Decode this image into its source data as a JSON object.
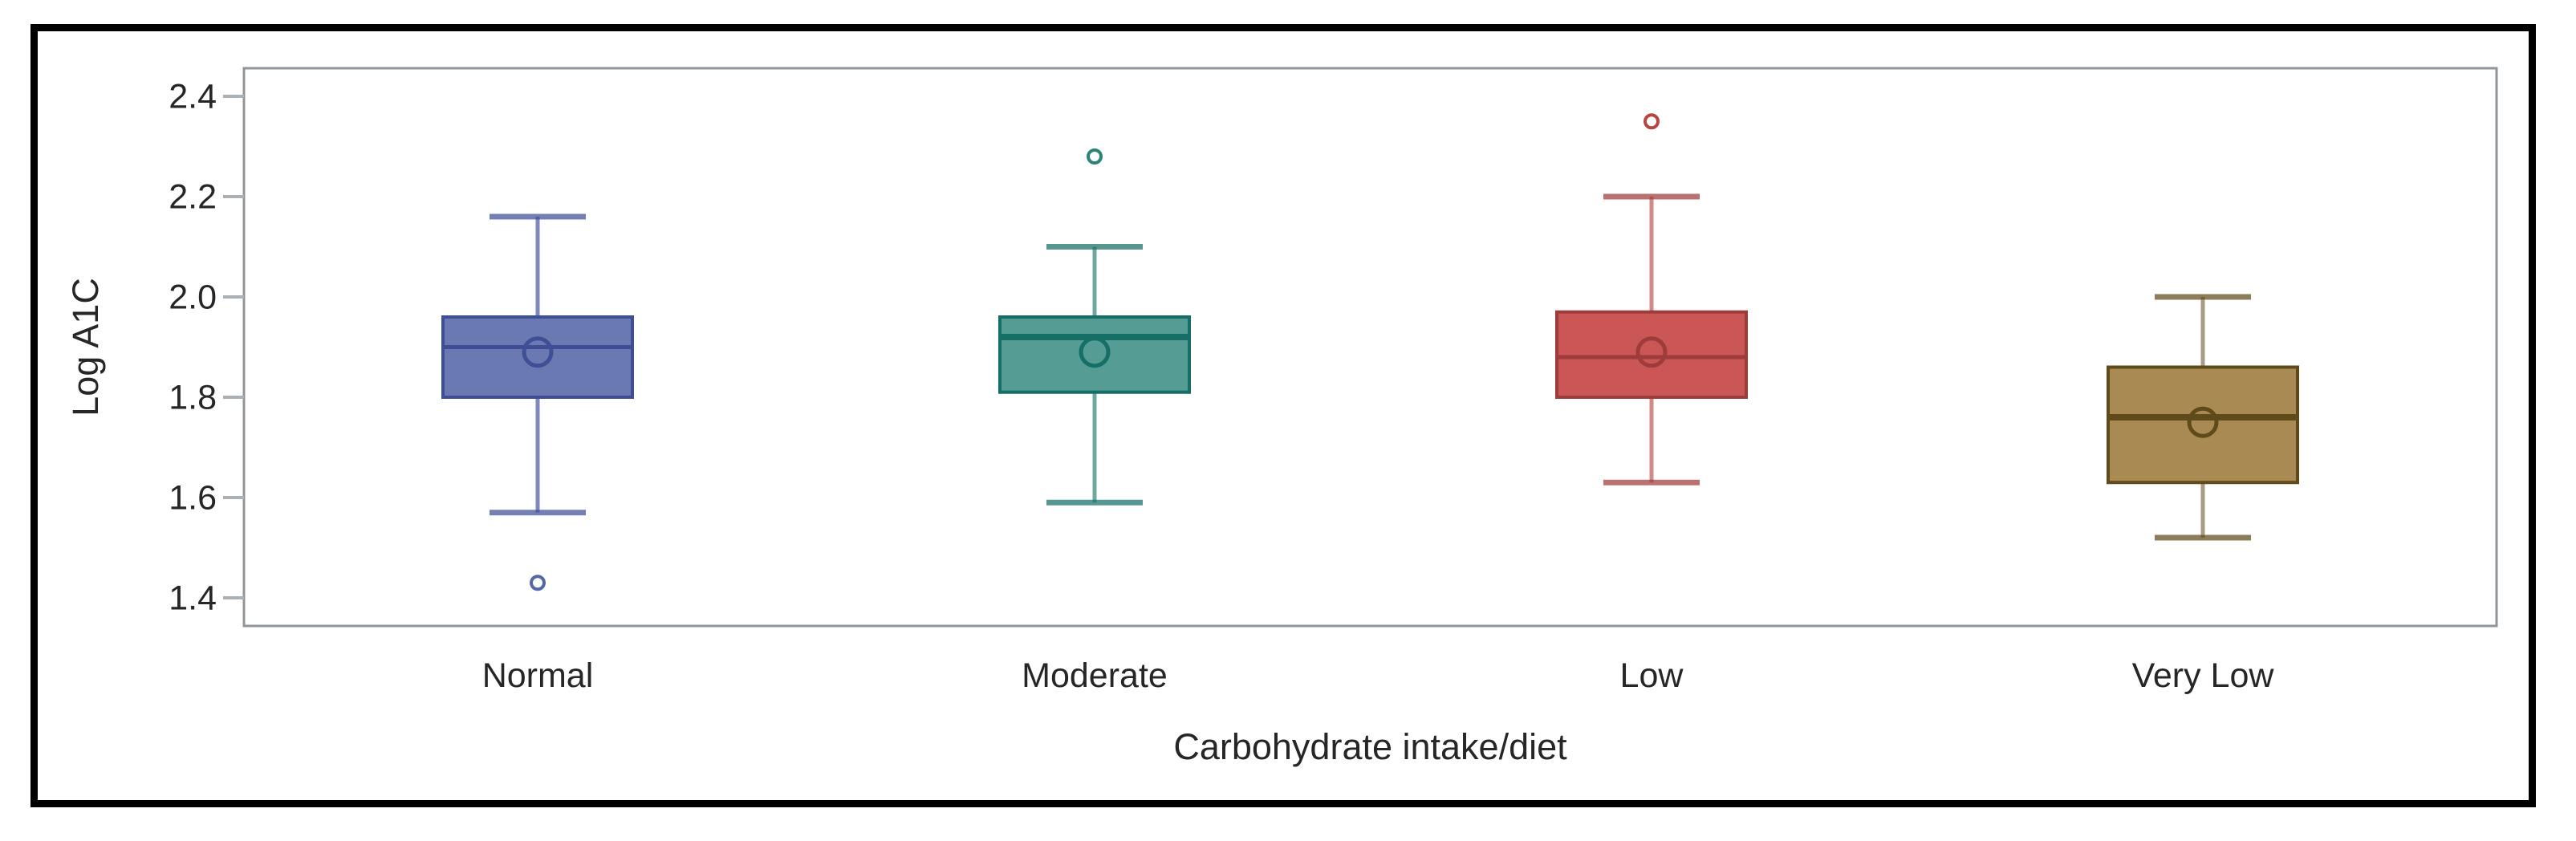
{
  "chart_data": {
    "type": "box",
    "title": "",
    "xlabel": "Carbohydrate intake/diet",
    "ylabel": "Log A1C",
    "categories": [
      "Normal",
      "Moderate",
      "Low",
      "Very Low"
    ],
    "y_ticks": [
      2.4,
      2.2,
      2.0,
      1.8,
      1.6,
      1.4
    ],
    "ylim": [
      1.34,
      2.46
    ],
    "grid": false,
    "legend": "none",
    "series": [
      {
        "category": "Normal",
        "whisker_low": 1.57,
        "q1": 1.8,
        "median": 1.9,
        "mean": 1.89,
        "q3": 1.96,
        "whisker_high": 2.16,
        "outliers": [
          1.43
        ],
        "colors": {
          "fill": "#6A79B2",
          "border": "#3E4F96",
          "whisker": "#7D89BE",
          "outlier": "#5667A7"
        }
      },
      {
        "category": "Moderate",
        "whisker_low": 1.59,
        "q1": 1.81,
        "median": 1.92,
        "mean": 1.89,
        "q3": 1.96,
        "whisker_high": 2.1,
        "outliers": [
          2.28
        ],
        "colors": {
          "fill": "#549C94",
          "border": "#156F66",
          "whisker": "#6CA8A0",
          "outlier": "#2E8278"
        }
      },
      {
        "category": "Low",
        "whisker_low": 1.63,
        "q1": 1.8,
        "median": 1.88,
        "mean": 1.89,
        "q3": 1.97,
        "whisker_high": 2.2,
        "outliers": [
          2.35
        ],
        "colors": {
          "fill": "#CA5656",
          "border": "#9E3B3B",
          "whisker": "#CF8B87",
          "outlier": "#B74642"
        }
      },
      {
        "category": "Very Low",
        "whisker_low": 1.52,
        "q1": 1.63,
        "median": 1.76,
        "mean": 1.75,
        "q3": 1.86,
        "whisker_high": 2.0,
        "outliers": [],
        "colors": {
          "fill": "#A98A52",
          "border": "#5F4A1A",
          "whisker": "#A89B84",
          "outlier": "#5F4A1A"
        }
      }
    ],
    "axis_colors": {
      "frame": "#8F959B",
      "tick": "#ABB0B5",
      "text": "#262626",
      "outer_border": "#000000"
    }
  }
}
